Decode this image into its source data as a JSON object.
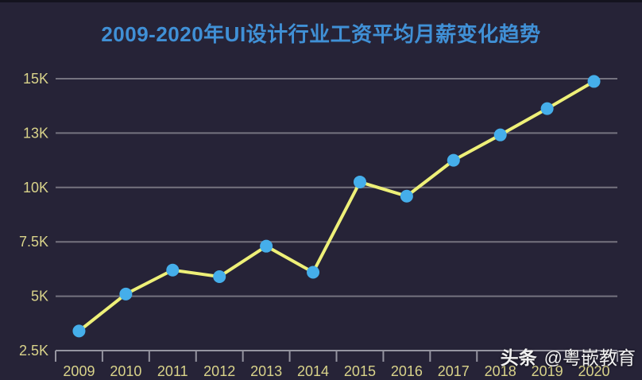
{
  "title": "2009-2020年UI设计行业工资平均月薪变化趋势",
  "watermark": {
    "brand": "头条",
    "handle": "@粤嵌教育"
  },
  "chart_data": {
    "type": "line",
    "title": "2009-2020年UI设计行业工资平均月薪变化趋势",
    "categories": [
      "2009",
      "2010",
      "2011",
      "2012",
      "2013",
      "2014",
      "2015",
      "2016",
      "2017",
      "2018",
      "2019",
      "2020"
    ],
    "values": [
      3.4,
      5.1,
      6.2,
      5.9,
      7.3,
      6.1,
      10.3,
      9.6,
      11.5,
      12.9,
      13.9,
      14.9
    ],
    "values_unit": "K",
    "y_tick_labels": [
      "15K",
      "13K",
      "10K",
      "7.5K",
      "5K",
      "2.5K"
    ],
    "y_tick_values": [
      15,
      13,
      10,
      7.5,
      5,
      2.5
    ],
    "xlabel": "",
    "ylabel": "",
    "grid": "horizontal",
    "legend": "none",
    "colors": {
      "background": "#262337",
      "title": "#4090d6",
      "axis_label": "#d9d38a",
      "gridline": "#75737f",
      "axis_line": "#9594a0",
      "line": "#eef078",
      "point": "#45aeea",
      "watermark": "#f2f2f2"
    }
  }
}
